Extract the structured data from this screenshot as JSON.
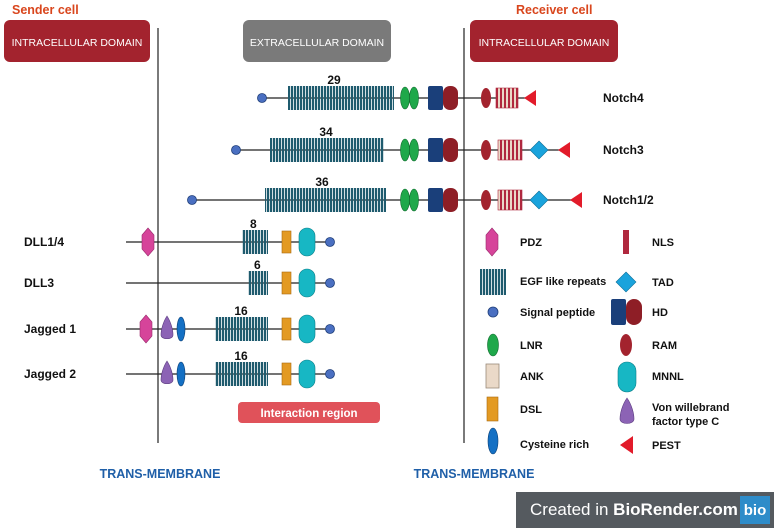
{
  "top_labels": {
    "sender": "Sender cell",
    "receiver": "Receiver cell"
  },
  "domain_boxes": {
    "sender_intracellular": "INTRACELLULAR DOMAIN",
    "extracellular": "EXTRACELLULAR DOMAIN",
    "receiver_intracellular": "INTRACELLULAR DOMAIN"
  },
  "membrane_labels": {
    "left": "TRANS-MEMBRANE",
    "right": "TRANS-MEMBRANE"
  },
  "receptors": [
    {
      "name": "Notch4",
      "egf_count": "29"
    },
    {
      "name": "Notch3",
      "egf_count": "34"
    },
    {
      "name": "Notch1/2",
      "egf_count": "36"
    }
  ],
  "ligands": [
    {
      "name": "DLL1/4",
      "egf_count": "8"
    },
    {
      "name": "DLL3",
      "egf_count": "6"
    },
    {
      "name": "Jagged 1",
      "egf_count": "16"
    },
    {
      "name": "Jagged 2",
      "egf_count": "16"
    }
  ],
  "interaction_region": "Interaction region",
  "legend": {
    "pdz": "PDZ",
    "nls": "NLS",
    "egf": "EGF like repeats",
    "tad": "TAD",
    "signal_peptide": "Signal peptide",
    "hd": "HD",
    "lnr": "LNR",
    "ram": "RAM",
    "ank": "ANK",
    "mnnl": "MNNL",
    "dsl": "DSL",
    "vwc_line1": "Von willebrand",
    "vwc_line2": "factor type C",
    "cysteine": "Cysteine rich",
    "pest": "PEST"
  },
  "colors": {
    "domain_red": "#a3232e",
    "domain_gray": "#7a7a7a",
    "label_orange": "#d9461d",
    "membrane_blue": "#1f5fa8",
    "egf": "#1f5b6e",
    "signal": "#4a6fc1",
    "lnr": "#1fa84a",
    "hd_blue": "#1a3f7a",
    "hd_red": "#8e1e26",
    "ram": "#a3232e",
    "ank": "#ead9c8",
    "nls": "#b0283e",
    "tad": "#1aa3dc",
    "pest": "#e21b2a",
    "pdz": "#d6449a",
    "dsl": "#e39a23",
    "mnnl": "#17b7c4",
    "vwc": "#8c63b5",
    "cysteine": "#1470c4",
    "interaction": "#e0525a"
  },
  "watermark": {
    "prefix": "Created in ",
    "brand": "BioRender.com",
    "logo": "bio"
  }
}
